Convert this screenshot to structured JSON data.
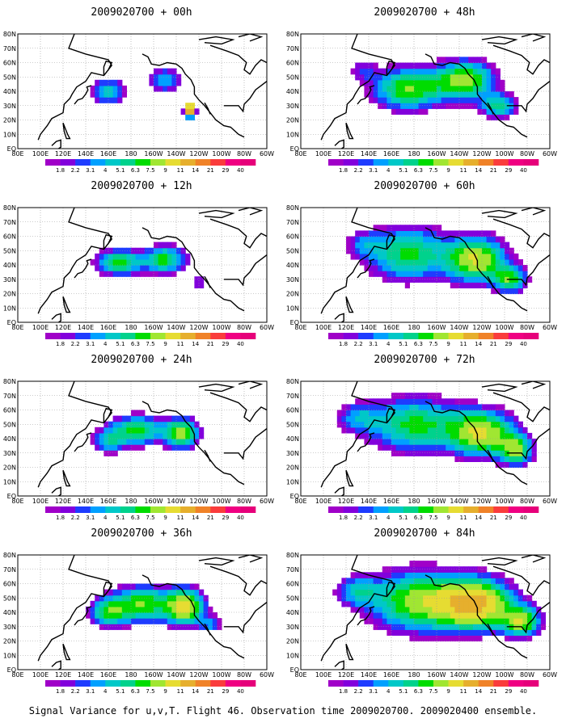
{
  "caption": "Signal Variance for u,v,T. Flight 46. Observation time 2009020700. 2009020400 ensemble.",
  "chart_data": [
    {
      "type": "heatmap",
      "title": "2009020700 + 00h",
      "lead_hours": 0,
      "blobs": [
        {
          "lon": 160,
          "lat": 40,
          "amp": 6,
          "rx": 14,
          "ry": 9
        },
        {
          "lon": 210,
          "lat": 48,
          "amp": 5,
          "rx": 14,
          "ry": 9
        },
        {
          "lon": 232,
          "lat": 27,
          "amp": 25,
          "rx": 4,
          "ry": 4
        },
        {
          "lon": 127,
          "lat": 8,
          "amp": 2,
          "rx": 4,
          "ry": 3
        }
      ]
    },
    {
      "type": "heatmap",
      "title": "2009020700 + 48h",
      "lead_hours": 48,
      "blobs": [
        {
          "lon": 175,
          "lat": 42,
          "amp": 9,
          "rx": 30,
          "ry": 14
        },
        {
          "lon": 225,
          "lat": 48,
          "amp": 10,
          "rx": 25,
          "ry": 13
        },
        {
          "lon": 255,
          "lat": 30,
          "amp": 7,
          "rx": 15,
          "ry": 8
        },
        {
          "lon": 135,
          "lat": 55,
          "amp": 3,
          "rx": 12,
          "ry": 8
        }
      ]
    },
    {
      "type": "heatmap",
      "title": "2009020700 + 12h",
      "lead_hours": 12,
      "blobs": [
        {
          "lon": 170,
          "lat": 42,
          "amp": 8,
          "rx": 20,
          "ry": 9
        },
        {
          "lon": 210,
          "lat": 44,
          "amp": 8,
          "rx": 18,
          "ry": 9
        },
        {
          "lon": 240,
          "lat": 28,
          "amp": 3,
          "rx": 7,
          "ry": 5
        },
        {
          "lon": 128,
          "lat": 8,
          "amp": 2,
          "rx": 4,
          "ry": 3
        }
      ]
    },
    {
      "type": "heatmap",
      "title": "2009020700 + 60h",
      "lead_hours": 60,
      "blobs": [
        {
          "lon": 175,
          "lat": 48,
          "amp": 8,
          "rx": 35,
          "ry": 18
        },
        {
          "lon": 235,
          "lat": 44,
          "amp": 11,
          "rx": 25,
          "ry": 15
        },
        {
          "lon": 265,
          "lat": 30,
          "amp": 8,
          "rx": 14,
          "ry": 9
        },
        {
          "lon": 135,
          "lat": 55,
          "amp": 3,
          "rx": 15,
          "ry": 9
        }
      ]
    },
    {
      "type": "heatmap",
      "title": "2009020700 + 24h",
      "lead_hours": 24,
      "blobs": [
        {
          "lon": 185,
          "lat": 46,
          "amp": 8,
          "rx": 24,
          "ry": 10
        },
        {
          "lon": 225,
          "lat": 44,
          "amp": 10,
          "rx": 14,
          "ry": 10
        },
        {
          "lon": 160,
          "lat": 38,
          "amp": 5,
          "rx": 14,
          "ry": 8
        },
        {
          "lon": 128,
          "lat": 8,
          "amp": 2,
          "rx": 4,
          "ry": 3
        }
      ]
    },
    {
      "type": "heatmap",
      "title": "2009020700 + 72h",
      "lead_hours": 72,
      "blobs": [
        {
          "lon": 180,
          "lat": 50,
          "amp": 8,
          "rx": 40,
          "ry": 18
        },
        {
          "lon": 240,
          "lat": 44,
          "amp": 11,
          "rx": 28,
          "ry": 15
        },
        {
          "lon": 270,
          "lat": 32,
          "amp": 9,
          "rx": 14,
          "ry": 10
        },
        {
          "lon": 130,
          "lat": 55,
          "amp": 4,
          "rx": 18,
          "ry": 10
        }
      ]
    },
    {
      "type": "heatmap",
      "title": "2009020700 + 36h",
      "lead_hours": 36,
      "blobs": [
        {
          "lon": 190,
          "lat": 46,
          "amp": 9,
          "rx": 28,
          "ry": 12
        },
        {
          "lon": 228,
          "lat": 44,
          "amp": 11,
          "rx": 16,
          "ry": 12
        },
        {
          "lon": 160,
          "lat": 40,
          "amp": 7,
          "rx": 16,
          "ry": 9
        },
        {
          "lon": 250,
          "lat": 32,
          "amp": 4,
          "rx": 10,
          "ry": 6
        }
      ]
    },
    {
      "type": "heatmap",
      "title": "2009020700 + 84h",
      "lead_hours": 84,
      "blobs": [
        {
          "lon": 185,
          "lat": 48,
          "amp": 10,
          "rx": 42,
          "ry": 20
        },
        {
          "lon": 235,
          "lat": 46,
          "amp": 14,
          "rx": 30,
          "ry": 16
        },
        {
          "lon": 275,
          "lat": 34,
          "amp": 10,
          "rx": 16,
          "ry": 10
        },
        {
          "lon": 130,
          "lat": 55,
          "amp": 5,
          "rx": 18,
          "ry": 10
        }
      ]
    }
  ],
  "axes": {
    "lat_ticks": [
      "EQ",
      "10N",
      "20N",
      "30N",
      "40N",
      "50N",
      "60N",
      "70N",
      "80N"
    ],
    "lat_values": [
      0,
      10,
      20,
      30,
      40,
      50,
      60,
      70,
      80
    ],
    "lon_ticks": [
      "80E",
      "100E",
      "120E",
      "140E",
      "160E",
      "180",
      "160W",
      "140W",
      "120W",
      "100W",
      "80W",
      "60W"
    ],
    "lon_values": [
      80,
      100,
      120,
      140,
      160,
      180,
      200,
      220,
      240,
      260,
      280,
      300
    ],
    "lon_range": [
      80,
      300
    ],
    "lat_range": [
      0,
      80
    ],
    "grid": true
  },
  "colorbar": {
    "labels": [
      "1.8",
      "2.2",
      "3.1",
      "4",
      "5.1",
      "6.3",
      "7.5",
      "9",
      "11",
      "14",
      "21",
      "29",
      "40"
    ],
    "levels": [
      1.8,
      2.2,
      3.1,
      4,
      5.1,
      6.3,
      7.5,
      9,
      11,
      14,
      21,
      29,
      40
    ],
    "colors": [
      "#a000c8",
      "#8200dc",
      "#1e3cff",
      "#00a0ff",
      "#00c8c8",
      "#00d28c",
      "#00dc00",
      "#a0e632",
      "#e6dc32",
      "#e6af2d",
      "#f08228",
      "#fa3c3c",
      "#f00082",
      "#e6007a"
    ]
  }
}
